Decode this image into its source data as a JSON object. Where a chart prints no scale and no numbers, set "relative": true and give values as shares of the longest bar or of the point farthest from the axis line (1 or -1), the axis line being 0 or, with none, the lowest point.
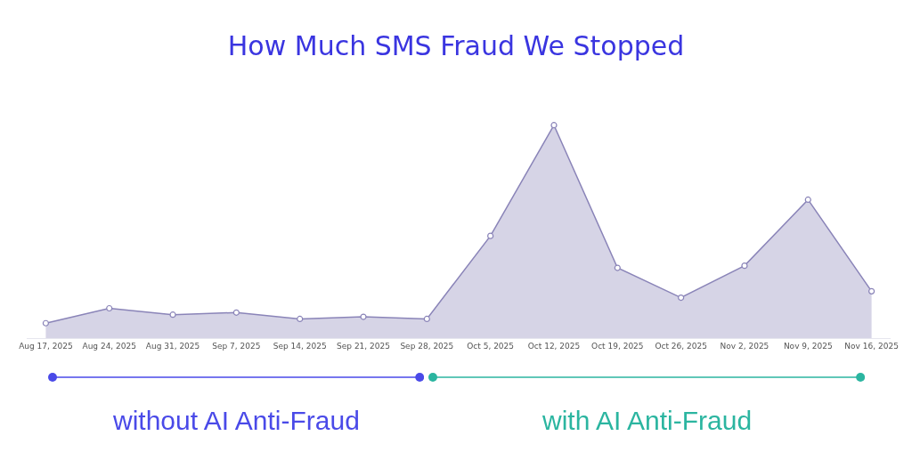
{
  "chart_data": {
    "type": "area",
    "title": "How Much SMS Fraud We Stopped",
    "relative": true,
    "categories": [
      "Aug 17, 2025",
      "Aug 24, 2025",
      "Aug 31, 2025",
      "Sep 7, 2025",
      "Sep 14, 2025",
      "Sep 21, 2025",
      "Sep 28, 2025",
      "Oct 5, 2025",
      "Oct 12, 2025",
      "Oct 19, 2025",
      "Oct 26, 2025",
      "Nov 2, 2025",
      "Nov 9, 2025",
      "Nov 16, 2025"
    ],
    "series": [
      {
        "color": "#8a84b8",
        "values": [
          0.07,
          0.14,
          0.11,
          0.12,
          0.09,
          0.1,
          0.09,
          0.48,
          1,
          0.33,
          0.19,
          0.34,
          0.65,
          0.22
        ]
      }
    ],
    "marker": "circle",
    "annotations": [
      "without AI Anti-Fraud",
      "with AI Anti-Fraud"
    ]
  }
}
